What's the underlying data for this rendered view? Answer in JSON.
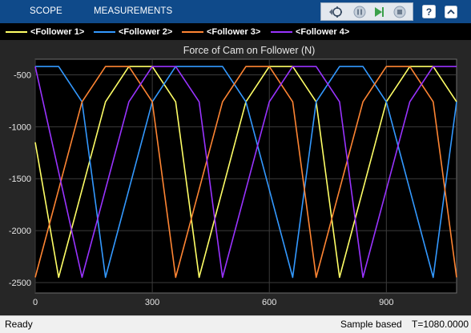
{
  "toolstrip": {
    "tabs": [
      {
        "label": "SCOPE"
      },
      {
        "label": "MEASUREMENTS"
      }
    ],
    "icons": [
      "highlight-simulink-block-icon",
      "pause-icon",
      "step-forward-icon",
      "stop-icon",
      "help-icon",
      "collapse-toolstrip-icon"
    ]
  },
  "legend": {
    "items": [
      {
        "label": "<Follower 1>",
        "color": "#ffff66"
      },
      {
        "label": "<Follower 2>",
        "color": "#3399ff"
      },
      {
        "label": "<Follower 3>",
        "color": "#ff8533"
      },
      {
        "label": "<Follower 4>",
        "color": "#9933ff"
      }
    ]
  },
  "chart_data": {
    "type": "line",
    "title": "Force of Cam on Follower (N)",
    "xlabel": "",
    "ylabel": "",
    "xlim": [
      0,
      1080
    ],
    "ylim": [
      -2600,
      -350
    ],
    "xticks": [
      0,
      300,
      600,
      900
    ],
    "yticks": [
      -500,
      -1000,
      -1500,
      -2000,
      -2500
    ],
    "grid": true,
    "background": "#000000",
    "series": [
      {
        "name": "<Follower 1>",
        "color": "#ffff66",
        "x": [
          0,
          60,
          180,
          240,
          300,
          360,
          420,
          540,
          600,
          660,
          720,
          780,
          900,
          960,
          1020,
          1080
        ],
        "y": [
          -1150,
          -2450,
          -760,
          -420,
          -420,
          -760,
          -2450,
          -760,
          -420,
          -420,
          -760,
          -2450,
          -760,
          -420,
          -420,
          -760
        ]
      },
      {
        "name": "<Follower 2>",
        "color": "#3399ff",
        "x": [
          0,
          60,
          120,
          180,
          300,
          360,
          420,
          480,
          540,
          660,
          720,
          780,
          840,
          900,
          1020,
          1080
        ],
        "y": [
          -420,
          -420,
          -760,
          -2450,
          -760,
          -420,
          -420,
          -420,
          -760,
          -2450,
          -760,
          -420,
          -420,
          -760,
          -2450,
          -760
        ]
      },
      {
        "name": "<Follower 3>",
        "color": "#ff8533",
        "x": [
          0,
          120,
          180,
          240,
          300,
          360,
          480,
          540,
          600,
          660,
          720,
          840,
          900,
          960,
          1020,
          1080
        ],
        "y": [
          -2450,
          -760,
          -420,
          -420,
          -760,
          -2450,
          -760,
          -420,
          -420,
          -760,
          -2450,
          -760,
          -420,
          -420,
          -760,
          -2450
        ]
      },
      {
        "name": "<Follower 4>",
        "color": "#9933ff",
        "x": [
          0,
          120,
          240,
          300,
          360,
          420,
          480,
          600,
          660,
          720,
          780,
          840,
          960,
          1020,
          1080
        ],
        "y": [
          -420,
          -2450,
          -760,
          -420,
          -420,
          -760,
          -2450,
          -760,
          -420,
          -420,
          -760,
          -2450,
          -760,
          -420,
          -420
        ]
      }
    ]
  },
  "status": {
    "left": "Ready",
    "mode": "Sample based",
    "time": "T=1080.0000"
  }
}
